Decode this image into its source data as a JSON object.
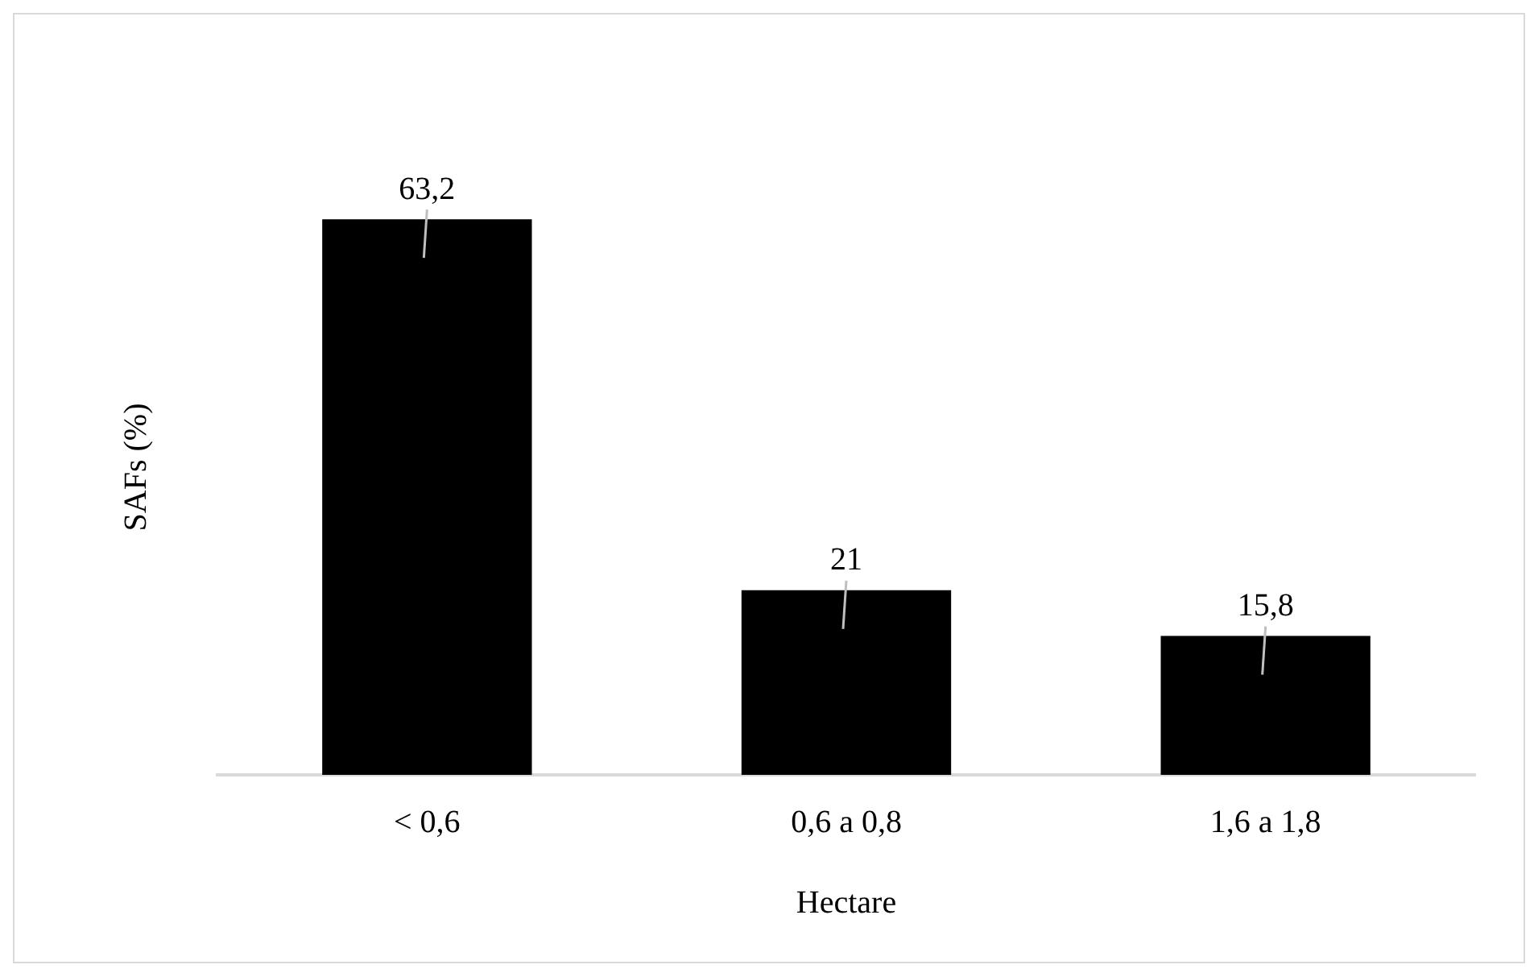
{
  "chart_data": {
    "type": "bar",
    "xlabel": "Hectare",
    "ylabel": "SAFs (%)",
    "categories": [
      "< 0,6",
      "0,6 a 0,8",
      "1,6 a 1,8"
    ],
    "values": [
      63.2,
      21,
      15.8
    ],
    "color": "#000000",
    "value_labels": [
      "63,2",
      "21",
      "15,8"
    ],
    "grid": false,
    "legend": false
  }
}
